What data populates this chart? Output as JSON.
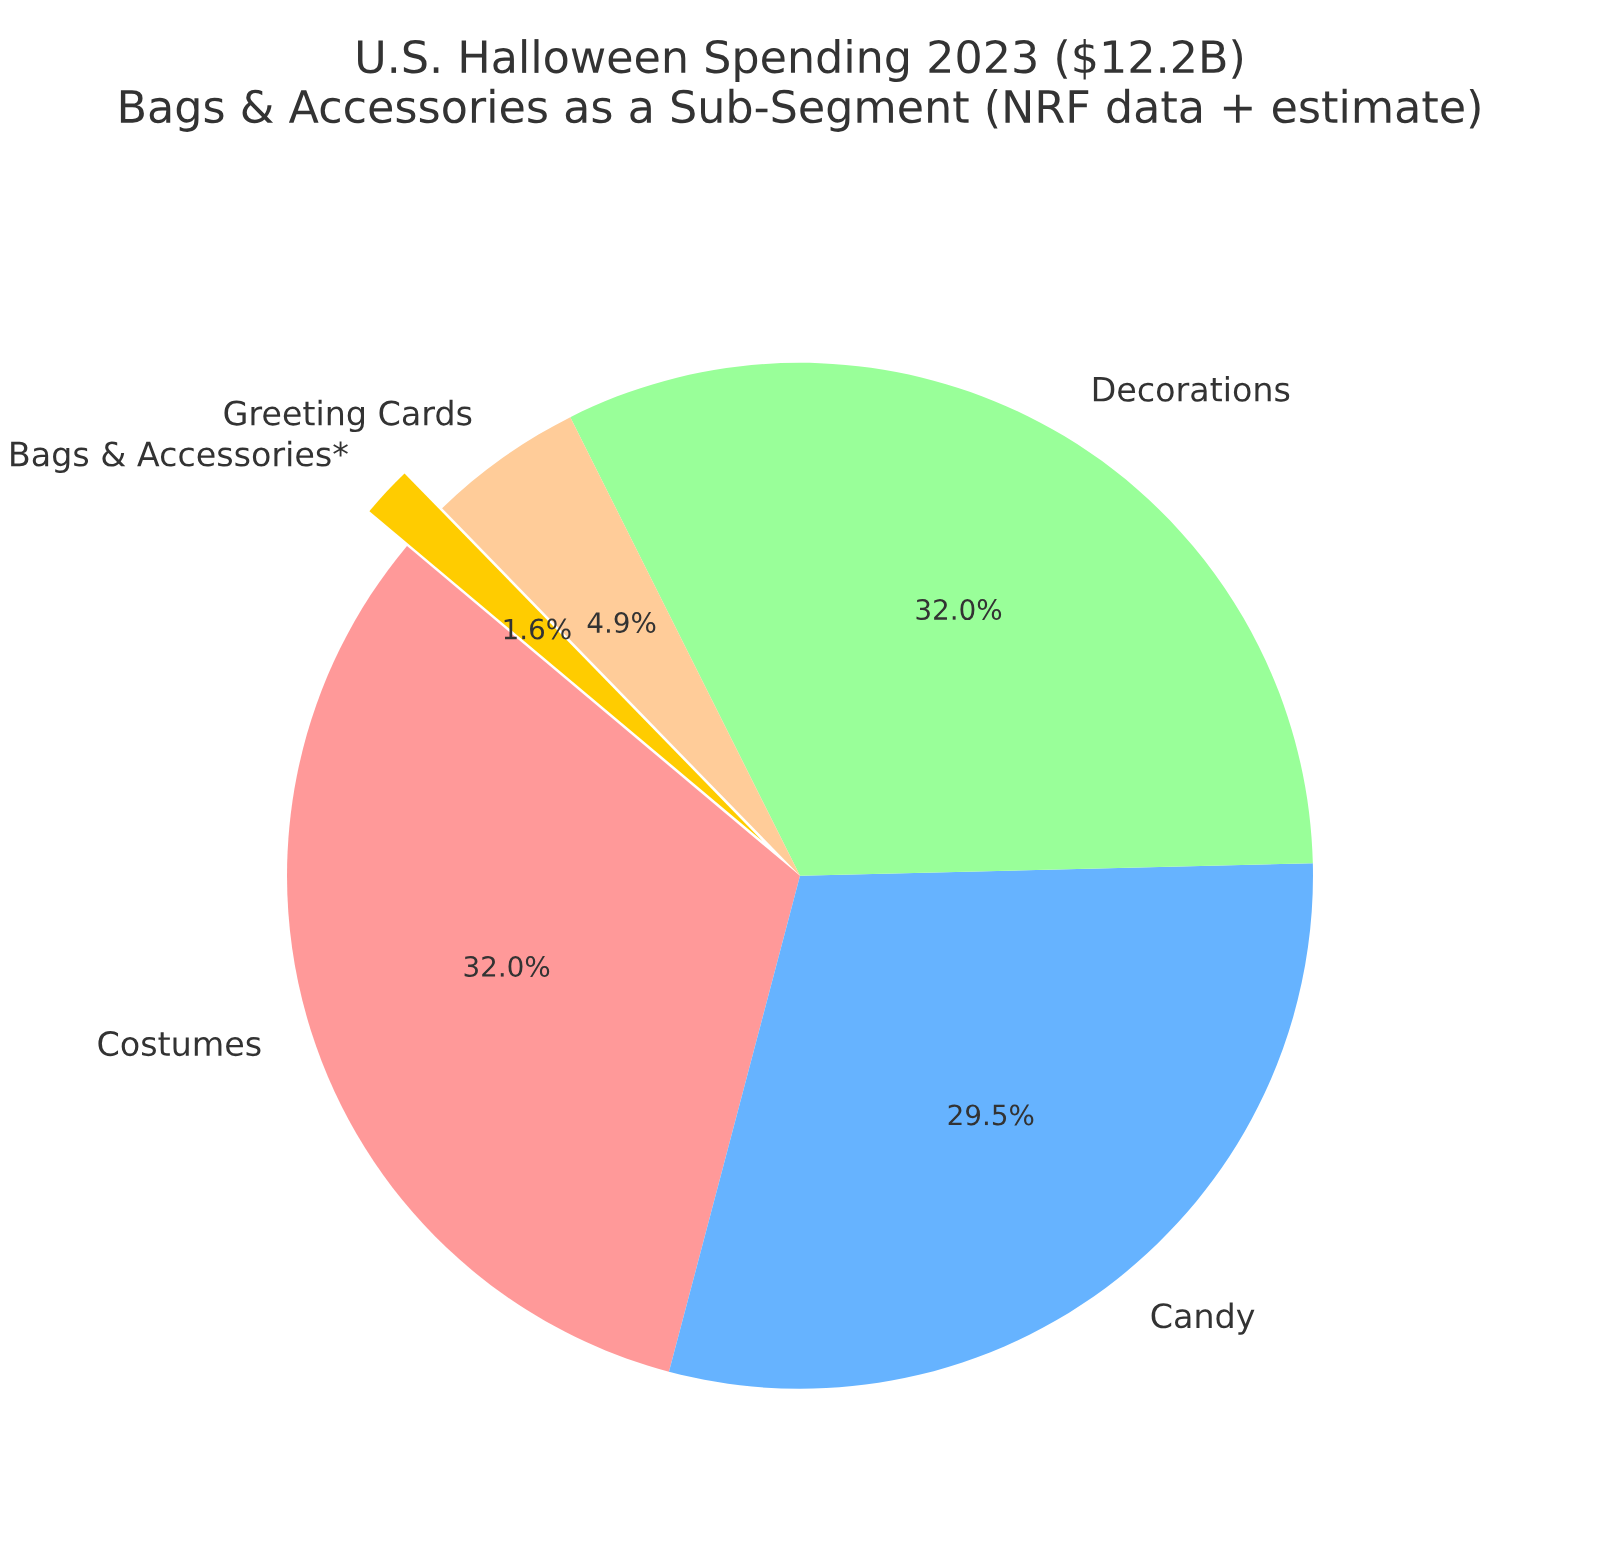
{
  "chart_data": {
    "type": "pie",
    "title": "U.S. Halloween Spending 2023 ($12.2B)\nBags & Accessories as a Sub-Segment (NRF data + estimate)",
    "categories": [
      "Costumes",
      "Candy",
      "Decorations",
      "Greeting Cards",
      "Bags & Accessories*"
    ],
    "values": [
      32.0,
      29.5,
      32.0,
      4.9,
      1.6
    ],
    "value_labels": [
      "32.0%",
      "29.5%",
      "32.0%",
      "4.9%",
      "1.6%"
    ],
    "colors": [
      "#ff9999",
      "#66b3ff",
      "#99ff99",
      "#ffcc99",
      "#ffcc00"
    ],
    "legend": false
  }
}
